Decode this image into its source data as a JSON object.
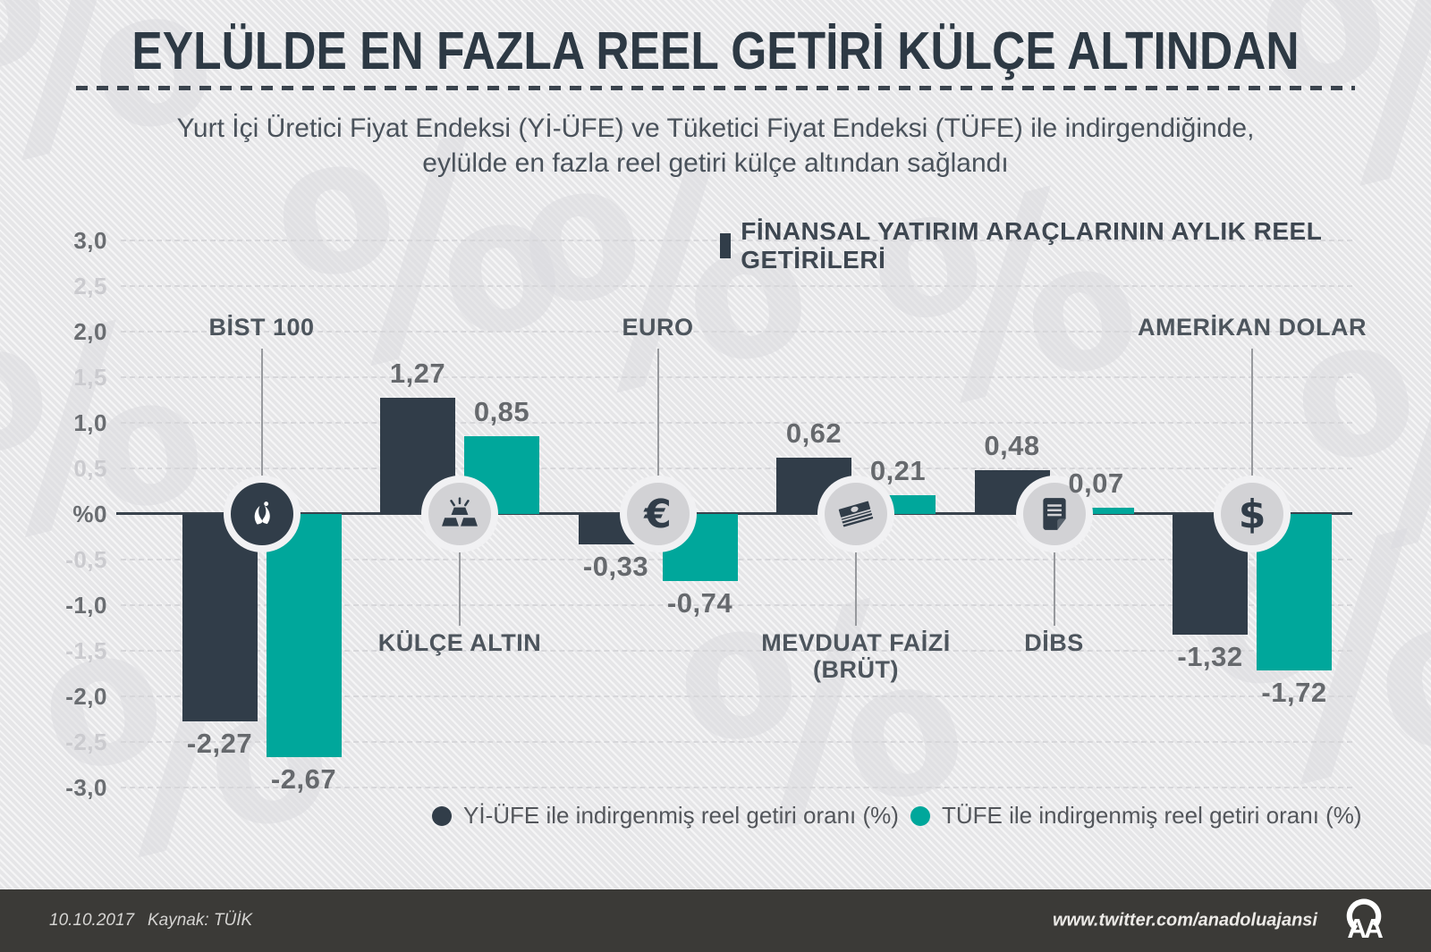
{
  "header": {
    "title": "EYLÜLDE EN FAZLA REEL GETİRİ KÜLÇE ALTINDAN",
    "subtitle_line1": "Yurt İçi Üretici Fiyat Endeksi (Yİ-ÜFE) ve Tüketici Fiyat Endeksi (TÜFE) ile indirgendiğinde,",
    "subtitle_line2": "eylülde en fazla reel getiri külçe altından sağlandı"
  },
  "chart_header": {
    "label": "FİNANSAL YATIRIM ARAÇLARININ AYLIK REEL GETİRİLERİ"
  },
  "chart_data": {
    "type": "bar",
    "title": "FİNANSAL YATIRIM ARAÇLARININ AYLIK REEL GETİRİLERİ",
    "unit": "%",
    "ylim": [
      -3.0,
      3.0
    ],
    "grid": "horizontal dashed, step 0.5",
    "legend_position": "bottom",
    "x_axis_zero_label": "%0",
    "y_ticks": [
      {
        "label": "3,0",
        "value": 3.0,
        "major": true
      },
      {
        "label": "2,5",
        "value": 2.5,
        "major": false
      },
      {
        "label": "2,0",
        "value": 2.0,
        "major": true
      },
      {
        "label": "1,5",
        "value": 1.5,
        "major": false
      },
      {
        "label": "1,0",
        "value": 1.0,
        "major": true
      },
      {
        "label": "0,5",
        "value": 0.5,
        "major": false
      },
      {
        "label": "%0",
        "value": 0.0,
        "major": true
      },
      {
        "label": "-0,5",
        "value": -0.5,
        "major": false
      },
      {
        "label": "-1,0",
        "value": -1.0,
        "major": true
      },
      {
        "label": "-1,5",
        "value": -1.5,
        "major": false
      },
      {
        "label": "-2,0",
        "value": -2.0,
        "major": true
      },
      {
        "label": "-2,5",
        "value": -2.5,
        "major": false
      },
      {
        "label": "-3,0",
        "value": -3.0,
        "major": true
      }
    ],
    "categories": [
      {
        "name": "BİST 100",
        "lines": [
          "BİST 100"
        ],
        "label_position": "above",
        "icon": "bist-logo-icon"
      },
      {
        "name": "KÜLÇE ALTIN",
        "lines": [
          "KÜLÇE ALTIN"
        ],
        "label_position": "below",
        "icon": "gold-bars-icon"
      },
      {
        "name": "EURO",
        "lines": [
          "EURO"
        ],
        "label_position": "above",
        "icon": "euro-icon"
      },
      {
        "name": "MEVDUAT FAİZİ (BRÜT)",
        "lines": [
          "MEVDUAT FAİZİ",
          "(BRÜT)"
        ],
        "label_position": "below",
        "icon": "banknotes-icon"
      },
      {
        "name": "DİBS",
        "lines": [
          "DİBS"
        ],
        "label_position": "below",
        "icon": "document-icon"
      },
      {
        "name": "AMERİKAN DOLAR",
        "lines": [
          "AMERİKAN DOLAR"
        ],
        "label_position": "above",
        "icon": "dollar-icon"
      }
    ],
    "series": [
      {
        "name": "Yİ-ÜFE ile indirgenmiş reel getiri oranı (%)",
        "color": "#313d49",
        "values": [
          -2.27,
          1.27,
          -0.33,
          0.62,
          0.48,
          -1.32
        ],
        "display": [
          "-2,27",
          "1,27",
          "-0,33",
          "0,62",
          "0,48",
          "-1,32"
        ]
      },
      {
        "name": "TÜFE ile indirgenmiş reel getiri oranı (%)",
        "color": "#00a79b",
        "values": [
          -2.67,
          0.85,
          -0.74,
          0.21,
          0.07,
          -1.72
        ],
        "display": [
          "-2,67",
          "0,85",
          "-0,74",
          "0,21",
          "0,07",
          "-1,72"
        ]
      }
    ]
  },
  "legend": {
    "items": [
      {
        "label": "Yİ-ÜFE ile indirgenmiş reel getiri oranı (%)",
        "color": "#313d49"
      },
      {
        "label": "TÜFE ile indirgenmiş reel getiri oranı (%)",
        "color": "#00a79b"
      }
    ]
  },
  "footer": {
    "date": "10.10.2017",
    "source": "Kaynak: TÜİK",
    "url": "www.twitter.com/anadoluajansi",
    "logo": "aa-logo"
  },
  "colors": {
    "background": "#e9e9eb",
    "series1": "#313d49",
    "series2": "#00a79b",
    "footer_bg": "#3b3a37",
    "axis": "#39434d"
  },
  "watermark_glyph": "%"
}
